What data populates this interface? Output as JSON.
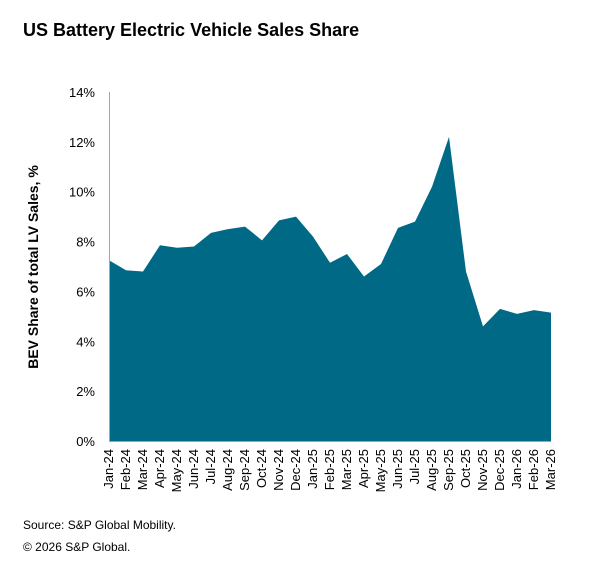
{
  "chart_data": {
    "type": "area",
    "title": "US Battery Electric Vehicle Sales Share",
    "ylabel": "BEV Share of total LV Sales, %",
    "xlabel": "",
    "ylim": [
      0,
      14
    ],
    "y_ticks": [
      "0%",
      "2%",
      "4%",
      "6%",
      "8%",
      "10%",
      "12%",
      "14%"
    ],
    "grid": false,
    "legend": "none",
    "color": "#006a86",
    "categories": [
      "Jan-24",
      "Feb-24",
      "Mar-24",
      "Apr-24",
      "May-24",
      "Jun-24",
      "Jul-24",
      "Aug-24",
      "Sep-24",
      "Oct-24",
      "Nov-24",
      "Dec-24",
      "Jan-25",
      "Feb-25",
      "Mar-25",
      "Apr-25",
      "May-25",
      "Jun-25",
      "Jul-25",
      "Aug-25",
      "Sep-25",
      "Oct-25",
      "Nov-25",
      "Dec-25",
      "Jan-26",
      "Feb-26",
      "Mar-26"
    ],
    "values": [
      7.25,
      6.85,
      6.8,
      7.85,
      7.75,
      7.8,
      8.35,
      8.5,
      8.6,
      8.05,
      8.85,
      9.0,
      8.2,
      7.15,
      7.5,
      6.6,
      7.1,
      8.55,
      8.8,
      10.2,
      12.2,
      6.8,
      4.6,
      5.3,
      5.1,
      5.25,
      5.15
    ]
  },
  "footer": {
    "source": "Source: S&P Global Mobility.",
    "copyright": "© 2026 S&P Global."
  }
}
